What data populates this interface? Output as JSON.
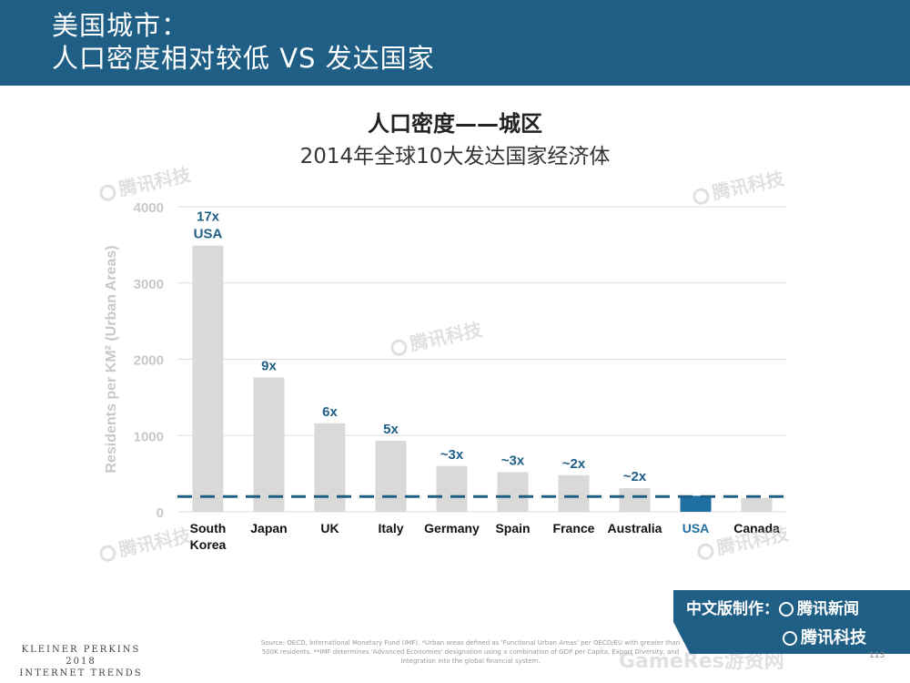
{
  "header": {
    "title": "美国城市：\n人口密度相对较低 VS 发达国家"
  },
  "chart_data": {
    "type": "bar",
    "title": "人口密度——城区",
    "subtitle": "2014年全球10大发达国家经济体",
    "ylabel": "Residents per KM² (Urban Areas)",
    "ylim": [
      0,
      4000
    ],
    "yticks": [
      0,
      1000,
      2000,
      3000,
      4000
    ],
    "categories": [
      "South Korea",
      "Japan",
      "UK",
      "Italy",
      "Germany",
      "Spain",
      "France",
      "Australia",
      "USA",
      "Canada"
    ],
    "values": [
      3490,
      1760,
      1160,
      930,
      600,
      520,
      480,
      310,
      210,
      180
    ],
    "data_labels": [
      "17x\nUSA",
      "9x",
      "6x",
      "5x",
      "~3x",
      "~3x",
      "~2x",
      "~2x",
      "",
      ""
    ],
    "reference_line": {
      "value": 200,
      "style": "dashed"
    },
    "grid": true,
    "colors": {
      "bar": "#d9d9d9",
      "highlight_bar": "#1f6fa3",
      "highlight_label": "#1f6fa3",
      "data_label": "#1f5f86",
      "reference_line": "#1f5f86",
      "grid": "#dddddd",
      "axis_text": "#c8c8c8"
    },
    "highlight_index": 8
  },
  "footer": {
    "brand": "KLEINER PERKINS\n2018\nINTERNET TRENDS",
    "source": "Source: OECD, International Monetary Fund (IMF). *Urban areas defined as 'Functional Urban Areas' per OECD/EU with greater than 500K residents. **IMF determines 'Advanced Economies' designation using a combination of GDP per Capita, Export Diversity, and integration into the global financial system.",
    "page_number": "113",
    "cn_edition": "中文版制作：",
    "cn_news": "腾讯新闻",
    "cn_tech": "腾讯科技"
  },
  "watermarks": [
    "腾讯科技",
    "GameRes游资网"
  ]
}
